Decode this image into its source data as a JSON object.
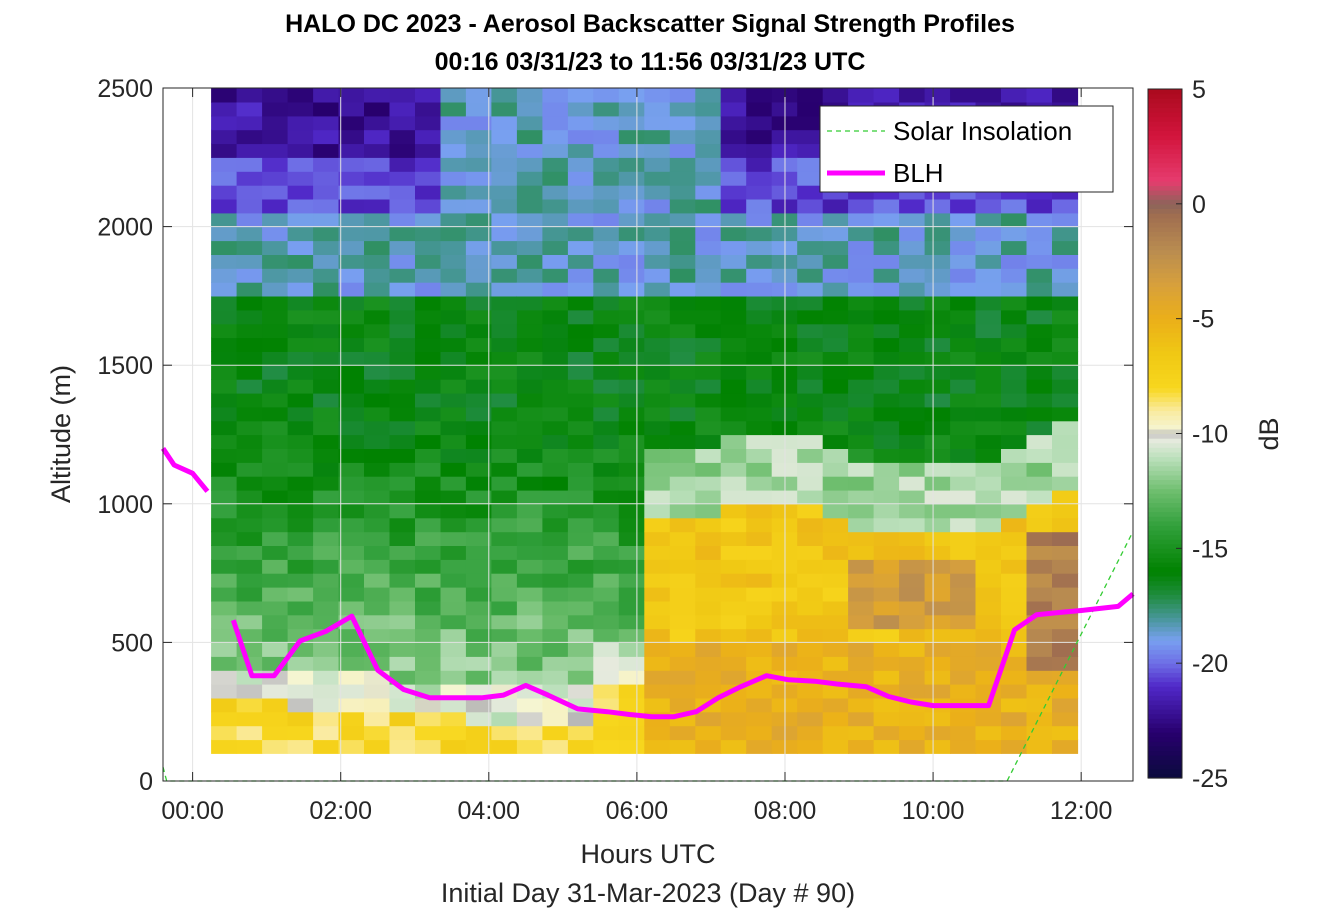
{
  "title_line1": "HALO DC 2023 - Aerosol Backscatter Signal Strength Profiles",
  "title_line2": "00:16 03/31/23 to 11:56 03/31/23  UTC",
  "chart_data": {
    "type": "heatmap",
    "xlabel": "Hours UTC",
    "xlabel2": "Initial Day 31-Mar-2023 (Day # 90)",
    "ylabel": "Altitude (m)",
    "xlim": [
      -0.4,
      12.7
    ],
    "ylim": [
      0,
      2500
    ],
    "x_ticks": [
      0,
      2,
      4,
      6,
      8,
      10,
      12
    ],
    "x_tick_labels": [
      "00:00",
      "02:00",
      "04:00",
      "06:00",
      "08:00",
      "10:00",
      "12:00"
    ],
    "y_ticks": [
      0,
      500,
      1000,
      1500,
      2000,
      2500
    ],
    "y_tick_labels": [
      "0",
      "500",
      "1000",
      "1500",
      "2000",
      "2500"
    ],
    "grid": true,
    "colorbar": {
      "label": "dB",
      "range": [
        -25,
        5
      ],
      "ticks": [
        5,
        0,
        -5,
        -10,
        -15,
        -20,
        -25
      ],
      "tick_labels": [
        "5",
        "0",
        "-5",
        "-10",
        "-15",
        "-20",
        "-25"
      ]
    },
    "heatmap_extent": {
      "x_start_hour": 0.25,
      "x_end_hour": 11.95,
      "alt_bottom_m": 100,
      "alt_top_m": 2500,
      "columns": 34,
      "rows": 48
    },
    "series": [
      {
        "name": "Solar Insolation",
        "style": "dashed",
        "color": "#33cc33",
        "points": [
          [
            -0.4,
            50
          ],
          [
            -0.35,
            0
          ],
          [
            11.0,
            0
          ],
          [
            12.7,
            900
          ]
        ]
      },
      {
        "name": "BLH",
        "style": "solid",
        "color": "#ff00ff",
        "points_segment1": [
          [
            -0.4,
            1200
          ],
          [
            -0.25,
            1140
          ],
          [
            0.0,
            1110
          ],
          [
            0.2,
            1045
          ]
        ],
        "points_segment2": [
          [
            0.55,
            580
          ],
          [
            0.8,
            380
          ],
          [
            1.1,
            380
          ],
          [
            1.45,
            505
          ],
          [
            1.8,
            540
          ],
          [
            2.15,
            595
          ],
          [
            2.5,
            400
          ],
          [
            2.85,
            330
          ],
          [
            3.2,
            300
          ],
          [
            3.6,
            300
          ],
          [
            3.9,
            300
          ],
          [
            4.2,
            310
          ],
          [
            4.5,
            345
          ],
          [
            4.8,
            310
          ],
          [
            5.2,
            260
          ],
          [
            5.6,
            250
          ],
          [
            5.9,
            240
          ],
          [
            6.2,
            232
          ],
          [
            6.5,
            232
          ],
          [
            6.8,
            250
          ],
          [
            7.1,
            300
          ],
          [
            7.4,
            340
          ],
          [
            7.75,
            380
          ],
          [
            8.05,
            365
          ],
          [
            8.4,
            360
          ],
          [
            8.7,
            350
          ],
          [
            9.1,
            340
          ],
          [
            9.4,
            305
          ],
          [
            9.7,
            285
          ],
          [
            10.0,
            272
          ],
          [
            10.4,
            272
          ],
          [
            10.75,
            272
          ],
          [
            11.1,
            545
          ],
          [
            11.4,
            600
          ],
          [
            11.7,
            608
          ],
          [
            12.0,
            615
          ],
          [
            12.5,
            630
          ],
          [
            12.7,
            675
          ]
        ]
      }
    ],
    "legend": {
      "position": "top-right",
      "entries": [
        "Solar Insolation",
        "BLH"
      ]
    }
  }
}
